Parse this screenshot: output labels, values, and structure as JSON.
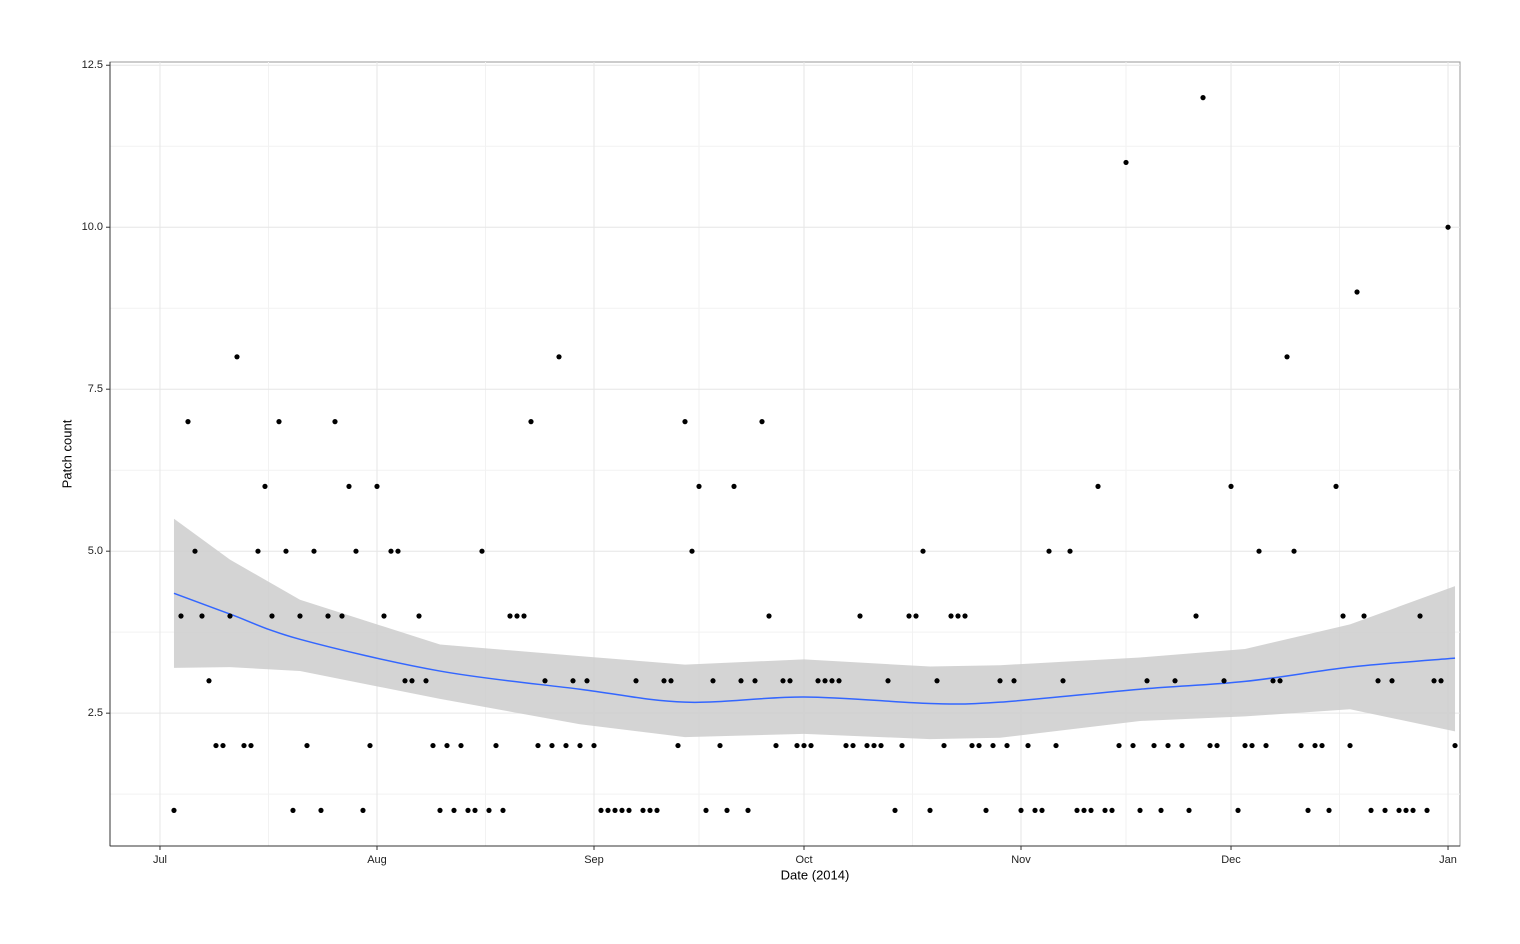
{
  "chart_data": {
    "type": "scatter",
    "x_label": "Date (2014)",
    "y_label": "Patch count",
    "xlim": [
      -7.14,
      185.71
    ],
    "ylim": [
      0.45,
      12.55
    ],
    "xticks": [
      {
        "value": 0,
        "label": "Jul"
      },
      {
        "value": 31,
        "label": "Aug"
      },
      {
        "value": 62,
        "label": "Sep"
      },
      {
        "value": 92,
        "label": "Oct"
      },
      {
        "value": 123,
        "label": "Nov"
      },
      {
        "value": 153,
        "label": "Dec"
      },
      {
        "value": 184,
        "label": "Jan"
      }
    ],
    "yticks": [
      2.5,
      {
        "value": 5,
        "label": "5.0"
      },
      7.5,
      {
        "value": 10,
        "label": "10.0"
      },
      12.5
    ],
    "grid": true,
    "color": "#000000",
    "x": [
      2,
      3,
      4,
      5,
      6,
      7,
      8,
      9,
      10,
      11,
      12,
      13,
      14,
      15,
      16,
      17,
      18,
      19,
      20,
      21,
      22,
      23,
      24,
      25,
      26,
      27,
      28,
      29,
      30,
      31,
      32,
      33,
      34,
      35,
      36,
      37,
      38,
      39,
      40,
      41,
      42,
      43,
      44,
      45,
      46,
      47,
      48,
      49,
      50,
      51,
      52,
      53,
      54,
      55,
      56,
      57,
      58,
      59,
      60,
      61,
      62,
      63,
      64,
      65,
      66,
      67,
      68,
      69,
      70,
      71,
      72,
      73,
      74,
      75,
      76,
      77,
      78,
      79,
      80,
      81,
      82,
      83,
      84,
      85,
      86,
      87,
      88,
      89,
      90,
      91,
      92,
      93,
      94,
      95,
      96,
      97,
      98,
      99,
      100,
      101,
      102,
      103,
      104,
      105,
      106,
      107,
      108,
      109,
      110,
      111,
      112,
      113,
      114,
      115,
      116,
      117,
      118,
      119,
      120,
      121,
      122,
      123,
      124,
      125,
      126,
      127,
      128,
      129,
      130,
      131,
      132,
      133,
      134,
      135,
      136,
      137,
      138,
      139,
      140,
      141,
      142,
      143,
      144,
      145,
      146,
      147,
      148,
      149,
      150,
      151,
      152,
      153,
      154,
      155,
      156,
      157,
      158,
      159,
      160,
      161,
      162,
      163,
      164,
      165,
      166,
      167,
      168,
      169,
      170,
      171,
      172,
      173,
      174,
      175,
      176,
      177,
      178,
      179,
      180,
      181,
      182,
      183,
      184,
      185
    ],
    "values": [
      1,
      4,
      7,
      5,
      4,
      3,
      2,
      2,
      4,
      8,
      2,
      2,
      5,
      6,
      4,
      7,
      5,
      1,
      4,
      2,
      5,
      1,
      4,
      7,
      4,
      6,
      5,
      1,
      2,
      6,
      4,
      5,
      5,
      3,
      3,
      4,
      3,
      2,
      1,
      2,
      1,
      2,
      1,
      1,
      5,
      1,
      2,
      1,
      4,
      4,
      4,
      7,
      2,
      3,
      2,
      8,
      2,
      3,
      2,
      3,
      2,
      1,
      1,
      1,
      1,
      1,
      3,
      1,
      1,
      1,
      3,
      3,
      2,
      7,
      5,
      6,
      1,
      3,
      2,
      1,
      6,
      3,
      1,
      3,
      7,
      4,
      2,
      3,
      3,
      2,
      2,
      2,
      3,
      3,
      3,
      3,
      2,
      2,
      4,
      2,
      2,
      2,
      3,
      1,
      2,
      4,
      4,
      5,
      1,
      3,
      2,
      4,
      4,
      4,
      2,
      2,
      1,
      2,
      3,
      2,
      3,
      1,
      2,
      1,
      1,
      5,
      2,
      3,
      5,
      1,
      1,
      1,
      6,
      1,
      1,
      2,
      11,
      2,
      1,
      3,
      2,
      1,
      2,
      3,
      2,
      1,
      4,
      12,
      2,
      2,
      3,
      6,
      1,
      2,
      2,
      5,
      2,
      3,
      3,
      8,
      5,
      2,
      1,
      2,
      2,
      1,
      6,
      4,
      2,
      9,
      4,
      1,
      3,
      1,
      3,
      1,
      1,
      1,
      4,
      1,
      3,
      3,
      10,
      2
    ],
    "smooth": {
      "color": "#3366ff",
      "band_color": "#cccccc",
      "x": [
        2,
        10,
        20,
        40,
        60,
        75,
        92,
        110,
        120,
        140,
        155,
        170,
        185
      ],
      "values": [
        4.35,
        4.03,
        3.64,
        3.15,
        2.87,
        2.67,
        2.75,
        2.65,
        2.67,
        2.87,
        2.99,
        3.21,
        3.35
      ],
      "lower": [
        3.2,
        3.21,
        3.15,
        2.72,
        2.33,
        2.13,
        2.18,
        2.1,
        2.12,
        2.38,
        2.45,
        2.56,
        2.22
      ],
      "upper": [
        5.5,
        4.87,
        4.25,
        3.56,
        3.38,
        3.25,
        3.33,
        3.22,
        3.24,
        3.36,
        3.49,
        3.87,
        4.46
      ]
    }
  }
}
